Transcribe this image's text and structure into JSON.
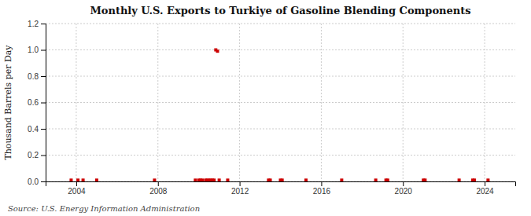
{
  "chart_data": {
    "type": "scatter",
    "title": "Monthly U.S. Exports to Turkiye of Gasoline Blending Components",
    "y_label": "Thousand Barrels per Day",
    "source": "Source: U.S. Energy Information Administration",
    "color": "#cc0000",
    "marker": "square",
    "grid": true,
    "xlim": [
      2002.5,
      2025.5
    ],
    "xticks": [
      2004,
      2008,
      2012,
      2016,
      2020,
      2024
    ],
    "ylim": [
      0.0,
      1.2
    ],
    "yticks": [
      {
        "value": 0.0,
        "label": "0.0"
      },
      0.2,
      0.4,
      0.6,
      0.8,
      {
        "value": 1.0,
        "label": "1.0"
      },
      1.2
    ],
    "x": [
      2003.75,
      2004.0833333333333,
      2004.3333333333333,
      2005,
      2007.8333333333333,
      2009.8333333333333,
      2010,
      2010.0833333333333,
      2010.1666666666667,
      2010.3333333333333,
      2010.4166666666667,
      2010.5,
      2010.5833333333333,
      2010.6666666666667,
      2010.75,
      2010.8333333333333,
      2010.9166666666667,
      2011,
      2011.4166666666667,
      2013.4166666666667,
      2013.5,
      2014,
      2014.0833333333333,
      2015.25,
      2017,
      2018.6666666666667,
      2019.1666666666667,
      2019.25,
      2021,
      2021.0833333333333,
      2022.75,
      2023.4166666666667,
      2023.5,
      2024.1666666666667
    ],
    "values": [
      0.01,
      0.01,
      0.01,
      0.01,
      0.01,
      0.01,
      0.01,
      0.01,
      0.01,
      0.01,
      0.01,
      0.01,
      0.01,
      0.01,
      0.01,
      1.0,
      0.99,
      0.01,
      0.01,
      0.01,
      0.01,
      0.01,
      0.01,
      0.01,
      0.01,
      0.01,
      0.01,
      0.01,
      0.01,
      0.01,
      0.01,
      0.01,
      0.01,
      0.01
    ]
  }
}
